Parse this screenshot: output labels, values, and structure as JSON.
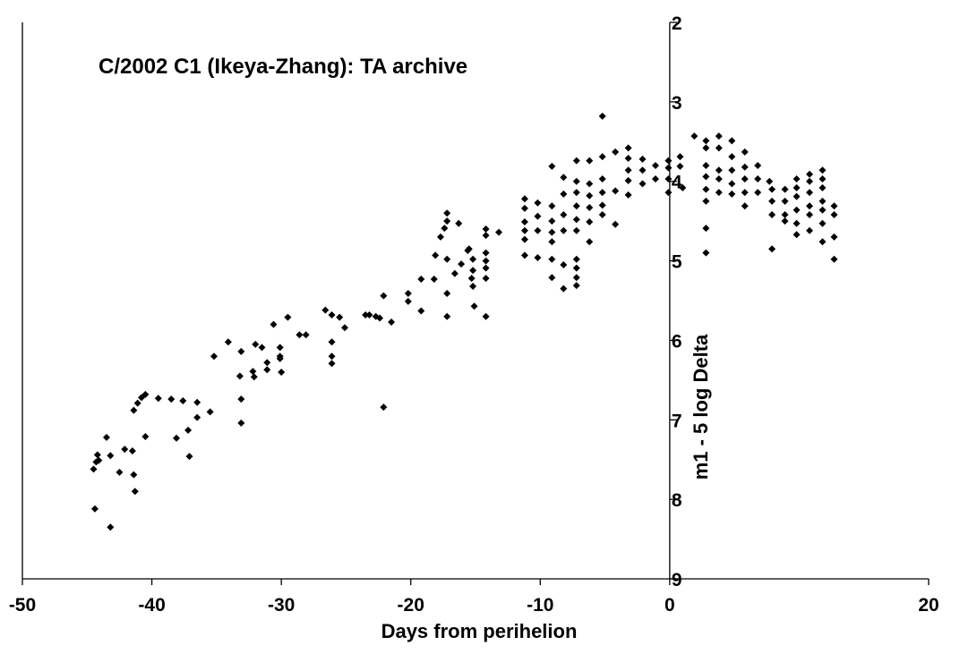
{
  "chart_data": {
    "type": "scatter",
    "title": "C/2002 C1 (Ikeya-Zhang): TA archive",
    "x_label": "Days from perihelion",
    "y_label": "m1 - 5 log Delta",
    "xlim": [
      -50,
      20
    ],
    "xticks": [
      -50,
      -40,
      -30,
      -20,
      -10,
      0,
      20
    ],
    "ylim": [
      2,
      9
    ],
    "yticks": [
      2,
      3,
      4,
      5,
      6,
      7,
      8,
      9
    ],
    "y_inverted": true,
    "y_axis_at": 0,
    "color": "#000000",
    "marker": "diamond",
    "x": [
      -44.5,
      -44.3,
      -44.2,
      -44.1,
      -43.5,
      -43.2,
      -44.4,
      -43.2,
      -42.5,
      -42.1,
      -41.5,
      -41.4,
      -41.3,
      -41.4,
      -41.1,
      -40.8,
      -40.5,
      -39.5,
      -38.5,
      -37.6,
      -36.5,
      -40.5,
      -38.1,
      -37.2,
      -37.1,
      -36.5,
      -35.5,
      -35.2,
      -34.1,
      -33.1,
      -33.2,
      -33.1,
      -33.1,
      -32.2,
      -32.1,
      -32.0,
      -31.5,
      -31.1,
      -31.1,
      -30.6,
      -30.1,
      -30.1,
      -30.0,
      -30.1,
      -29.5,
      -28.6,
      -28.1,
      -26.6,
      -26.1,
      -26.1,
      -26.1,
      -26.1,
      -25.5,
      -25.1,
      -23.5,
      -23.2,
      -22.7,
      -22.4,
      -22.1,
      -22.1,
      -21.5,
      -20.2,
      -20.2,
      -19.2,
      -19.2,
      -18.2,
      -18.1,
      -17.7,
      -17.4,
      -17.2,
      -17.2,
      -17.2,
      -17.2,
      -17.2,
      -16.6,
      -16.3,
      -16.1,
      -15.6,
      -15.5,
      -15.3,
      -15.2,
      -15.2,
      -15.2,
      -15.1,
      -14.2,
      -14.2,
      -14.2,
      -14.2,
      -14.2,
      -14.2,
      -14.2,
      -13.2,
      -11.2,
      -11.2,
      -11.2,
      -11.2,
      -11.2,
      -11.2,
      -10.2,
      -10.2,
      -10.2,
      -10.2,
      -9.1,
      -9.1,
      -9.1,
      -9.1,
      -9.1,
      -9.1,
      -9.1,
      -8.2,
      -8.2,
      -8.2,
      -8.2,
      -8.2,
      -8.2,
      -7.2,
      -7.2,
      -7.2,
      -7.2,
      -7.2,
      -7.2,
      -7.2,
      -7.2,
      -7.2,
      -7.2,
      -6.2,
      -6.2,
      -6.2,
      -6.2,
      -6.2,
      -6.2,
      -5.2,
      -5.2,
      -5.2,
      -5.2,
      -5.2,
      -5.2,
      -4.2,
      -4.2,
      -4.2,
      -3.2,
      -3.2,
      -3.2,
      -3.2,
      -3.2,
      -2.1,
      -2.1,
      -2.1,
      -1.1,
      -1.1,
      -0.1,
      -0.1,
      -0.1,
      -0.1,
      0.8,
      0.8,
      1.0,
      1.9,
      2.8,
      2.8,
      2.8,
      2.8,
      2.8,
      2.8,
      2.8,
      2.8,
      3.8,
      3.8,
      3.8,
      3.8,
      3.8,
      4.8,
      4.8,
      4.8,
      4.8,
      4.8,
      5.8,
      5.8,
      5.8,
      5.8,
      5.8,
      6.8,
      6.8,
      6.8,
      7.7,
      7.9,
      7.9,
      7.9,
      7.9,
      8.9,
      8.9,
      8.9,
      8.9,
      9.8,
      9.8,
      9.8,
      9.8,
      9.8,
      9.8,
      10.8,
      10.8,
      10.8,
      10.8,
      10.8,
      10.8,
      11.8,
      11.8,
      11.8,
      11.8,
      11.8,
      11.8,
      11.8,
      12.7,
      12.7,
      12.7,
      12.7
    ],
    "values": [
      7.62,
      7.53,
      7.44,
      7.51,
      7.22,
      7.45,
      8.12,
      8.35,
      7.66,
      7.37,
      7.39,
      7.69,
      7.9,
      6.88,
      6.79,
      6.72,
      6.68,
      6.73,
      6.74,
      6.76,
      6.78,
      7.21,
      7.23,
      7.13,
      7.46,
      6.97,
      6.9,
      6.2,
      6.02,
      6.14,
      6.45,
      6.74,
      7.04,
      6.39,
      6.46,
      6.05,
      6.09,
      6.37,
      6.28,
      5.8,
      6.09,
      6.2,
      6.4,
      6.23,
      5.71,
      5.93,
      5.93,
      5.62,
      5.68,
      6.02,
      6.2,
      6.29,
      5.71,
      5.84,
      5.68,
      5.68,
      5.7,
      5.72,
      5.44,
      6.84,
      5.77,
      5.41,
      5.51,
      5.63,
      5.23,
      5.23,
      4.93,
      4.7,
      4.59,
      4.4,
      4.5,
      4.98,
      5.41,
      5.7,
      5.16,
      4.53,
      5.04,
      4.87,
      4.85,
      5.22,
      4.98,
      5.12,
      5.32,
      5.57,
      4.6,
      4.68,
      4.9,
      5.0,
      5.09,
      5.22,
      5.7,
      4.64,
      4.22,
      4.34,
      4.51,
      4.62,
      4.73,
      4.93,
      4.27,
      4.44,
      4.62,
      4.96,
      3.81,
      4.31,
      4.5,
      4.64,
      4.76,
      4.98,
      5.21,
      3.95,
      4.16,
      4.42,
      4.62,
      5.05,
      5.35,
      3.74,
      4.0,
      4.14,
      4.31,
      4.48,
      4.62,
      4.98,
      5.09,
      5.21,
      5.31,
      3.74,
      4.03,
      4.18,
      4.33,
      4.51,
      4.76,
      3.18,
      3.69,
      3.97,
      4.14,
      4.3,
      4.42,
      3.63,
      4.12,
      4.54,
      3.58,
      3.71,
      3.86,
      3.99,
      4.17,
      3.72,
      3.86,
      4.03,
      3.8,
      3.97,
      3.74,
      3.83,
      3.97,
      4.14,
      3.69,
      3.81,
      4.08,
      3.43,
      3.49,
      3.58,
      3.8,
      3.94,
      4.1,
      4.25,
      4.59,
      4.9,
      3.43,
      3.58,
      3.86,
      3.97,
      4.14,
      3.49,
      3.69,
      3.86,
      4.03,
      4.16,
      3.63,
      3.82,
      3.97,
      4.14,
      4.31,
      3.8,
      3.97,
      4.14,
      4.0,
      4.1,
      4.25,
      4.42,
      4.85,
      4.1,
      4.25,
      4.42,
      4.5,
      3.97,
      4.08,
      4.19,
      4.36,
      4.53,
      4.67,
      3.91,
      4.0,
      4.14,
      4.31,
      4.42,
      4.62,
      3.86,
      3.97,
      4.08,
      4.25,
      4.36,
      4.53,
      4.76,
      4.31,
      4.42,
      4.7,
      4.98
    ]
  }
}
